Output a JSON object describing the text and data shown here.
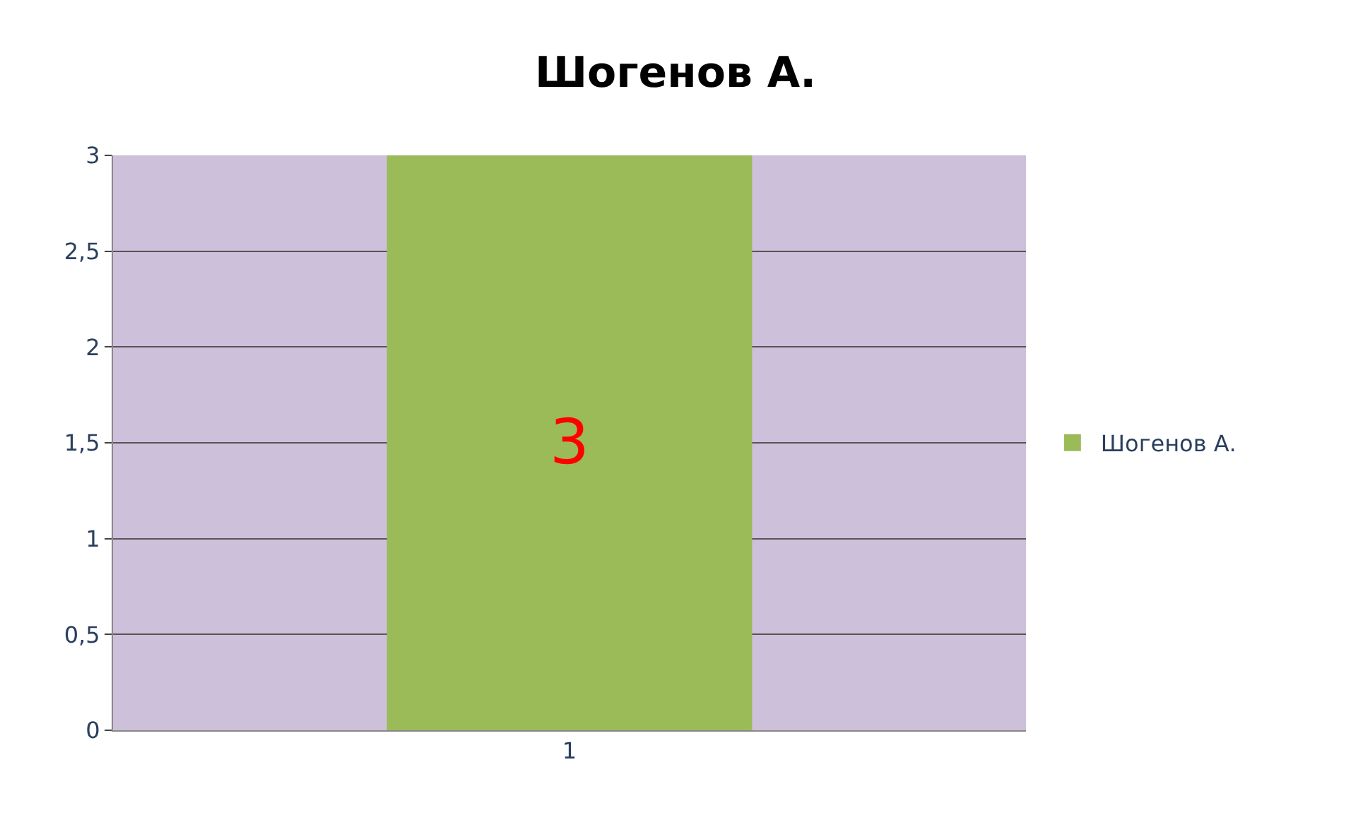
{
  "chart_data": {
    "type": "bar",
    "title": "Шогенов А.",
    "categories": [
      "1"
    ],
    "series": [
      {
        "name": "Шогенов А.",
        "color": "#9bbb59",
        "values": [
          3
        ]
      }
    ],
    "ylim": [
      0,
      3
    ],
    "yticks": [
      0,
      {
        "value": 0.5,
        "label": "0,5"
      },
      1,
      {
        "value": 1.5,
        "label": "1,5"
      },
      2,
      {
        "value": 2.5,
        "label": "2,5"
      },
      3
    ],
    "grid": "y",
    "legend": "right",
    "data_labels": true
  }
}
